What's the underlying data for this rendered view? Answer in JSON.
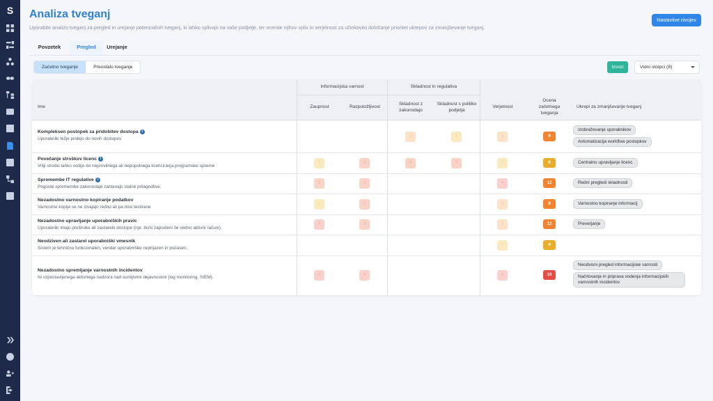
{
  "sidebar": {
    "logo": "S",
    "icons": [
      "dashboard-icon",
      "settings-sliders-icon",
      "network-icon",
      "link-icon",
      "hierarchy-icon",
      "report-icon",
      "table-icon",
      "document-icon",
      "chart-icon",
      "flow-icon",
      "box-icon"
    ],
    "bottom_icons": [
      "expand-icon",
      "user-icon",
      "users-icon",
      "logout-icon"
    ]
  },
  "header": {
    "title": "Analiza tveganj",
    "subtitle": "Uporabite analizo tveganj za pregled in urejanje potencialnih tveganj, ki lahko vplivajo na vaše podjetje, ter ocenite njihov vpliv in verjetnost za učinkovito določanje prioritet ukrepov za zmanjševanje tveganj.",
    "primary_button": "Nastavitve nivojev"
  },
  "tabs": [
    "Povzetek",
    "Pregled",
    "Urejanje"
  ],
  "active_tab": "Pregled",
  "toggle": {
    "option_on": "Začetno tveganje",
    "option_off": "Preostalo tveganje"
  },
  "toolbar": {
    "export_label": "Izvozi",
    "columns_select": "Vidni stolpci (8)"
  },
  "table": {
    "group_headers": {
      "info_security": "Informacijska varnost",
      "compliance": "Skladnost in regulativa"
    },
    "columns": {
      "name": "Ime",
      "confidentiality": "Zaupnost",
      "availability": "Razpoložljivost",
      "compliance_law": "Skladnost z zakonodajo",
      "compliance_policy": "Skladnost s politiko podjetja",
      "likelihood": "Verjetnost",
      "initial_score": "Ocena začetnega tveganja",
      "measures": "Ukrepi za zmanjševanje tveganj"
    },
    "rows": [
      {
        "name": "Kompleksen postopek za pridobitev dostopa",
        "desc": "Uporabniki težje pridejo do novih dostopov",
        "confidentiality": "",
        "availability": "",
        "law": "3",
        "policy": "3",
        "likelihood": "3",
        "score": "9",
        "measures": [
          "Izobraževanje uporabnikov",
          "Avtomatizacija workflow postopkov"
        ]
      },
      {
        "name": "Povečanje stroškov licenc",
        "desc": "Višji stroški lahko vodijo do neprovilnega ali nepopolnega licenciranja programske opreme",
        "confidentiality": "3",
        "availability": "3",
        "law": "3",
        "policy": "3",
        "likelihood": "2",
        "score": "6",
        "measures": [
          "Centralno upravljanje licenc"
        ]
      },
      {
        "name": "Spremembe IT regulative",
        "desc": "Pogoste spremembe zakonodaje zahtevajo stalne prilagoditve.",
        "confidentiality": "3",
        "availability": "3",
        "law": "",
        "policy": "",
        "likelihood": "4",
        "score": "12",
        "measures": [
          "Redni pregledi skladnosti"
        ]
      },
      {
        "name": "Nezadostno varnostno kopiranje podatkov",
        "desc": "Varnostne kopije se ne izvajajo redno ali pa niso testirane",
        "confidentiality": "3",
        "availability": "3",
        "law": "",
        "policy": "",
        "likelihood": "3",
        "score": "9",
        "measures": [
          "Varnostno kopiranje informacij"
        ]
      },
      {
        "name": "Nezadostno upravljanje uporabniških pravic",
        "desc": "Uporabniki imajo preširoke ali zastarele dostope (npr. bivši zaposleni še vedno aktivni računi).",
        "confidentiality": "4",
        "availability": "3",
        "law": "",
        "policy": "",
        "likelihood": "3",
        "score": "12",
        "measures": [
          "Preverjanje"
        ]
      },
      {
        "name": "Neodziven ali zastarel uporabniški vmesnik",
        "desc": "Sistem je tehnično funkcionalen, vendar uporabniško neprijazen in počasen.",
        "confidentiality": "",
        "availability": "",
        "law": "",
        "policy": "",
        "likelihood": "2",
        "score": "4",
        "measures": []
      },
      {
        "name": "Nezadostno spremljanje varnostnih incidentov",
        "desc": "Ni vzpostavljenega aktivnega nadzora nad sumljivimi dejavnostmi (log monitoring, SIEM).",
        "confidentiality": "4",
        "availability": "4",
        "law": "",
        "policy": "",
        "likelihood": "4",
        "score": "16",
        "measures": [
          "Neodvisni pregled informacijske varnosti",
          "Načrtovanje in priprava vodenja informacijskih varnostnih incidentov"
        ]
      }
    ]
  },
  "colors": {
    "accent": "#2f86e8",
    "sidebar": "#1e2a4a",
    "export": "#2fb59a",
    "score_orange": "#f08431",
    "score_yellow": "#e9ad2c",
    "score_red": "#e44c44"
  }
}
